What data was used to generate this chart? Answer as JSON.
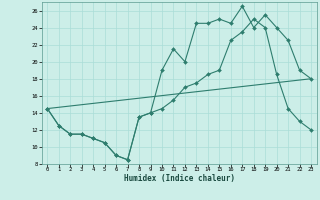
{
  "xlabel": "Humidex (Indice chaleur)",
  "bg_color": "#cceee8",
  "grid_color": "#aaddd8",
  "line_color": "#2e7d6e",
  "xlim": [
    -0.5,
    23.5
  ],
  "ylim": [
    8,
    27
  ],
  "xticks": [
    0,
    1,
    2,
    3,
    4,
    5,
    6,
    7,
    8,
    9,
    10,
    11,
    12,
    13,
    14,
    15,
    16,
    17,
    18,
    19,
    20,
    21,
    22,
    23
  ],
  "yticks": [
    8,
    10,
    12,
    14,
    16,
    18,
    20,
    22,
    24,
    26
  ],
  "line1_x": [
    0,
    1,
    2,
    3,
    4,
    5,
    6,
    7,
    8,
    9,
    10,
    11,
    12,
    13,
    14,
    15,
    16,
    17,
    18,
    19,
    20,
    21,
    22,
    23
  ],
  "line1_y": [
    14.5,
    12.5,
    11.5,
    11.5,
    11.0,
    10.5,
    9.0,
    8.5,
    13.5,
    14.0,
    19.0,
    21.5,
    20.0,
    24.5,
    24.5,
    25.0,
    24.5,
    26.5,
    24.0,
    25.5,
    24.0,
    22.5,
    19.0,
    18.0
  ],
  "line2_x": [
    0,
    1,
    2,
    3,
    4,
    5,
    6,
    7,
    8,
    9,
    10,
    11,
    12,
    13,
    14,
    15,
    16,
    17,
    18,
    19,
    20,
    21,
    22,
    23
  ],
  "line2_y": [
    14.5,
    12.5,
    11.5,
    11.5,
    11.0,
    10.5,
    9.0,
    8.5,
    13.5,
    14.0,
    14.5,
    15.5,
    17.0,
    17.5,
    18.5,
    19.0,
    22.5,
    23.5,
    25.0,
    24.0,
    18.5,
    14.5,
    13.0,
    12.0
  ],
  "line3_x": [
    0,
    23
  ],
  "line3_y": [
    14.5,
    18.0
  ]
}
